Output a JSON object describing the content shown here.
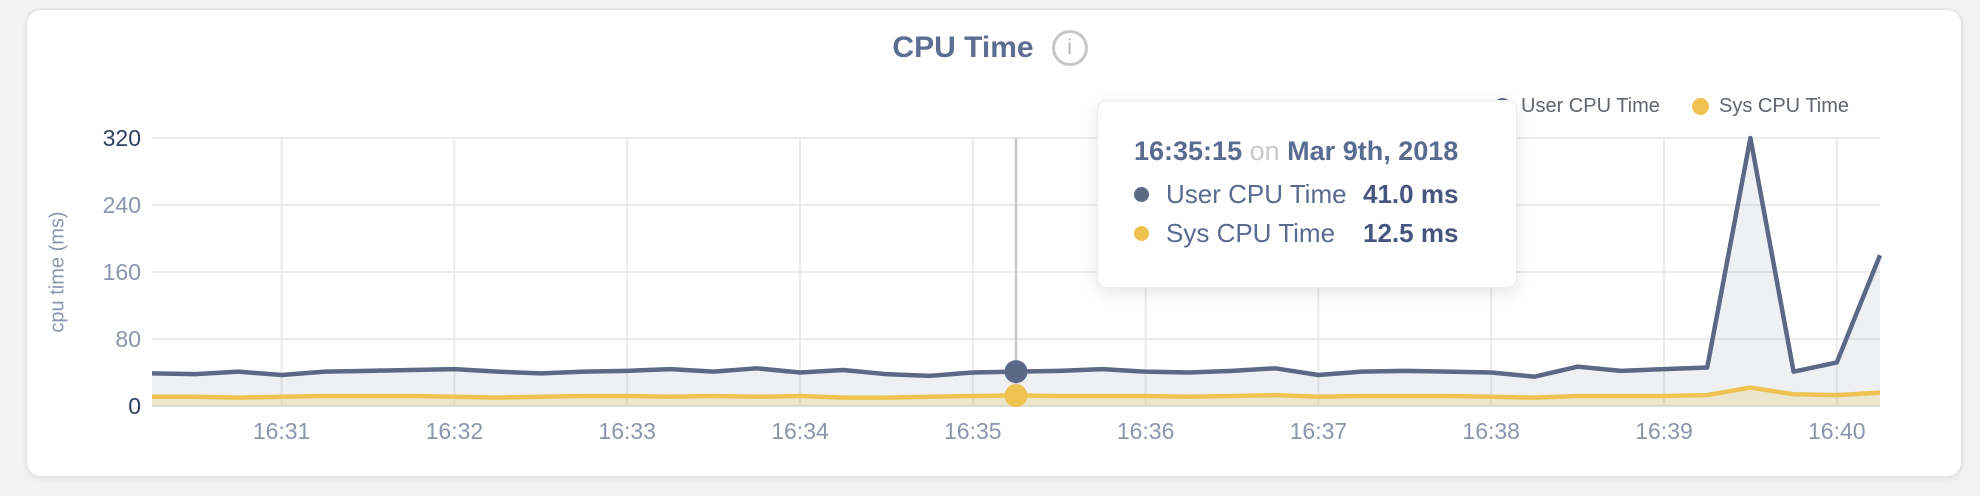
{
  "header": {
    "title": "CPU Time",
    "info_icon_glyph": "i"
  },
  "legend": [
    {
      "label": "User CPU Time",
      "color": "#5b6987"
    },
    {
      "label": "Sys CPU Time",
      "color": "#eec351"
    }
  ],
  "tooltip": {
    "time": "16:35:15",
    "connector": "on",
    "date": "Mar 9th, 2018",
    "rows": [
      {
        "label": "User CPU Time",
        "value": "41.0 ms",
        "color": "#5b6987"
      },
      {
        "label": "Sys CPU Time",
        "value": "12.5 ms",
        "color": "#eec351"
      }
    ]
  },
  "chart_data": {
    "type": "area",
    "title": "CPU Time",
    "ylabel": "cpu time (ms)",
    "ylim": [
      0,
      320
    ],
    "yticks": [
      0,
      80,
      160,
      240,
      320
    ],
    "xticks": [
      "16:31",
      "16:32",
      "16:33",
      "16:34",
      "16:35",
      "16:36",
      "16:37",
      "16:38",
      "16:39",
      "16:40"
    ],
    "x_domain": [
      "16:30:15",
      "16:40:15"
    ],
    "grid": true,
    "legend_position": "top-right",
    "x": [
      "16:30:15",
      "16:30:30",
      "16:30:45",
      "16:31:00",
      "16:31:15",
      "16:31:30",
      "16:31:45",
      "16:32:00",
      "16:32:15",
      "16:32:30",
      "16:32:45",
      "16:33:00",
      "16:33:15",
      "16:33:30",
      "16:33:45",
      "16:34:00",
      "16:34:15",
      "16:34:30",
      "16:34:45",
      "16:35:00",
      "16:35:15",
      "16:35:30",
      "16:35:45",
      "16:36:00",
      "16:36:15",
      "16:36:30",
      "16:36:45",
      "16:37:00",
      "16:37:15",
      "16:37:30",
      "16:37:45",
      "16:38:00",
      "16:38:15",
      "16:38:30",
      "16:38:45",
      "16:39:00",
      "16:39:15",
      "16:39:30",
      "16:39:45",
      "16:40:00",
      "16:40:15"
    ],
    "series": [
      {
        "name": "User CPU Time",
        "color": "#5b6987",
        "fill": "rgba(93,110,141,0.10)",
        "values": [
          39,
          38,
          41,
          37,
          41,
          42,
          43,
          44,
          41,
          39,
          41,
          42,
          44,
          41,
          45,
          40,
          43,
          38,
          36,
          40,
          41,
          42,
          44,
          41,
          40,
          42,
          45,
          37,
          41,
          42,
          41,
          40,
          35,
          47,
          42,
          44,
          46,
          320,
          41,
          52,
          180
        ]
      },
      {
        "name": "Sys CPU Time",
        "color": "#eec351",
        "fill": "rgba(238,195,81,0.22)",
        "values": [
          11,
          11,
          10,
          11,
          12,
          12,
          12,
          11,
          10,
          11,
          12,
          12,
          11,
          12,
          11,
          12,
          10,
          10,
          11,
          12,
          12.5,
          12,
          12,
          12,
          11,
          12,
          13,
          11,
          12,
          12,
          12,
          11,
          10,
          12,
          12,
          12,
          13,
          22,
          14,
          13,
          16
        ]
      }
    ],
    "hover": {
      "x": "16:35:15",
      "values": [
        41.0,
        12.5
      ],
      "line_color": "#c8c8c8"
    },
    "grid_color": "#ececec",
    "baseline_color": "#e3e3e3"
  }
}
